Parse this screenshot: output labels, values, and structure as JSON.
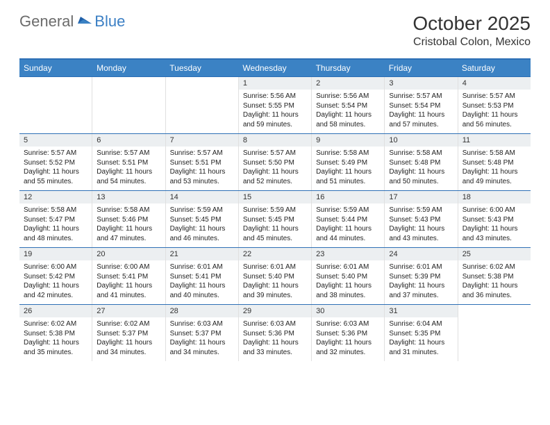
{
  "logo": {
    "general": "General",
    "blue": "Blue"
  },
  "title": "October 2025",
  "location": "Cristobal Colon, Mexico",
  "colors": {
    "header_bg": "#3b82c4",
    "border": "#2d6fb5",
    "daynum_bg": "#eceff1",
    "text": "#222222"
  },
  "dow": [
    "Sunday",
    "Monday",
    "Tuesday",
    "Wednesday",
    "Thursday",
    "Friday",
    "Saturday"
  ],
  "weeks": [
    [
      {
        "n": "",
        "sr": "",
        "ss": "",
        "dl": ""
      },
      {
        "n": "",
        "sr": "",
        "ss": "",
        "dl": ""
      },
      {
        "n": "",
        "sr": "",
        "ss": "",
        "dl": ""
      },
      {
        "n": "1",
        "sr": "Sunrise: 5:56 AM",
        "ss": "Sunset: 5:55 PM",
        "dl": "Daylight: 11 hours and 59 minutes."
      },
      {
        "n": "2",
        "sr": "Sunrise: 5:56 AM",
        "ss": "Sunset: 5:54 PM",
        "dl": "Daylight: 11 hours and 58 minutes."
      },
      {
        "n": "3",
        "sr": "Sunrise: 5:57 AM",
        "ss": "Sunset: 5:54 PM",
        "dl": "Daylight: 11 hours and 57 minutes."
      },
      {
        "n": "4",
        "sr": "Sunrise: 5:57 AM",
        "ss": "Sunset: 5:53 PM",
        "dl": "Daylight: 11 hours and 56 minutes."
      }
    ],
    [
      {
        "n": "5",
        "sr": "Sunrise: 5:57 AM",
        "ss": "Sunset: 5:52 PM",
        "dl": "Daylight: 11 hours and 55 minutes."
      },
      {
        "n": "6",
        "sr": "Sunrise: 5:57 AM",
        "ss": "Sunset: 5:51 PM",
        "dl": "Daylight: 11 hours and 54 minutes."
      },
      {
        "n": "7",
        "sr": "Sunrise: 5:57 AM",
        "ss": "Sunset: 5:51 PM",
        "dl": "Daylight: 11 hours and 53 minutes."
      },
      {
        "n": "8",
        "sr": "Sunrise: 5:57 AM",
        "ss": "Sunset: 5:50 PM",
        "dl": "Daylight: 11 hours and 52 minutes."
      },
      {
        "n": "9",
        "sr": "Sunrise: 5:58 AM",
        "ss": "Sunset: 5:49 PM",
        "dl": "Daylight: 11 hours and 51 minutes."
      },
      {
        "n": "10",
        "sr": "Sunrise: 5:58 AM",
        "ss": "Sunset: 5:48 PM",
        "dl": "Daylight: 11 hours and 50 minutes."
      },
      {
        "n": "11",
        "sr": "Sunrise: 5:58 AM",
        "ss": "Sunset: 5:48 PM",
        "dl": "Daylight: 11 hours and 49 minutes."
      }
    ],
    [
      {
        "n": "12",
        "sr": "Sunrise: 5:58 AM",
        "ss": "Sunset: 5:47 PM",
        "dl": "Daylight: 11 hours and 48 minutes."
      },
      {
        "n": "13",
        "sr": "Sunrise: 5:58 AM",
        "ss": "Sunset: 5:46 PM",
        "dl": "Daylight: 11 hours and 47 minutes."
      },
      {
        "n": "14",
        "sr": "Sunrise: 5:59 AM",
        "ss": "Sunset: 5:45 PM",
        "dl": "Daylight: 11 hours and 46 minutes."
      },
      {
        "n": "15",
        "sr": "Sunrise: 5:59 AM",
        "ss": "Sunset: 5:45 PM",
        "dl": "Daylight: 11 hours and 45 minutes."
      },
      {
        "n": "16",
        "sr": "Sunrise: 5:59 AM",
        "ss": "Sunset: 5:44 PM",
        "dl": "Daylight: 11 hours and 44 minutes."
      },
      {
        "n": "17",
        "sr": "Sunrise: 5:59 AM",
        "ss": "Sunset: 5:43 PM",
        "dl": "Daylight: 11 hours and 43 minutes."
      },
      {
        "n": "18",
        "sr": "Sunrise: 6:00 AM",
        "ss": "Sunset: 5:43 PM",
        "dl": "Daylight: 11 hours and 43 minutes."
      }
    ],
    [
      {
        "n": "19",
        "sr": "Sunrise: 6:00 AM",
        "ss": "Sunset: 5:42 PM",
        "dl": "Daylight: 11 hours and 42 minutes."
      },
      {
        "n": "20",
        "sr": "Sunrise: 6:00 AM",
        "ss": "Sunset: 5:41 PM",
        "dl": "Daylight: 11 hours and 41 minutes."
      },
      {
        "n": "21",
        "sr": "Sunrise: 6:01 AM",
        "ss": "Sunset: 5:41 PM",
        "dl": "Daylight: 11 hours and 40 minutes."
      },
      {
        "n": "22",
        "sr": "Sunrise: 6:01 AM",
        "ss": "Sunset: 5:40 PM",
        "dl": "Daylight: 11 hours and 39 minutes."
      },
      {
        "n": "23",
        "sr": "Sunrise: 6:01 AM",
        "ss": "Sunset: 5:40 PM",
        "dl": "Daylight: 11 hours and 38 minutes."
      },
      {
        "n": "24",
        "sr": "Sunrise: 6:01 AM",
        "ss": "Sunset: 5:39 PM",
        "dl": "Daylight: 11 hours and 37 minutes."
      },
      {
        "n": "25",
        "sr": "Sunrise: 6:02 AM",
        "ss": "Sunset: 5:38 PM",
        "dl": "Daylight: 11 hours and 36 minutes."
      }
    ],
    [
      {
        "n": "26",
        "sr": "Sunrise: 6:02 AM",
        "ss": "Sunset: 5:38 PM",
        "dl": "Daylight: 11 hours and 35 minutes."
      },
      {
        "n": "27",
        "sr": "Sunrise: 6:02 AM",
        "ss": "Sunset: 5:37 PM",
        "dl": "Daylight: 11 hours and 34 minutes."
      },
      {
        "n": "28",
        "sr": "Sunrise: 6:03 AM",
        "ss": "Sunset: 5:37 PM",
        "dl": "Daylight: 11 hours and 34 minutes."
      },
      {
        "n": "29",
        "sr": "Sunrise: 6:03 AM",
        "ss": "Sunset: 5:36 PM",
        "dl": "Daylight: 11 hours and 33 minutes."
      },
      {
        "n": "30",
        "sr": "Sunrise: 6:03 AM",
        "ss": "Sunset: 5:36 PM",
        "dl": "Daylight: 11 hours and 32 minutes."
      },
      {
        "n": "31",
        "sr": "Sunrise: 6:04 AM",
        "ss": "Sunset: 5:35 PM",
        "dl": "Daylight: 11 hours and 31 minutes."
      },
      {
        "n": "",
        "sr": "",
        "ss": "",
        "dl": ""
      }
    ]
  ]
}
